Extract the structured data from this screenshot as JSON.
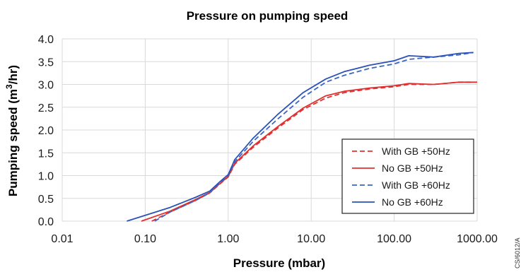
{
  "chart_data": {
    "type": "line",
    "title": "Pressure on pumping speed",
    "xlabel": "Pressure (mbar)",
    "ylabel_main": "Pumping speed (m",
    "ylabel_sup": "3",
    "ylabel_end": "/hr)",
    "xscale": "log",
    "xlim": [
      0.01,
      1000
    ],
    "ylim": [
      0,
      4.0
    ],
    "xticks": [
      0.01,
      0.1,
      1,
      10,
      100,
      1000
    ],
    "xtick_labels": [
      "0.01",
      "0.10",
      "1.00",
      "10.00",
      "100.00",
      "1000.00"
    ],
    "yticks": [
      0,
      0.5,
      1.0,
      1.5,
      2.0,
      2.5,
      3.0,
      3.5,
      4.0
    ],
    "ytick_labels": [
      "0.0",
      "0.5",
      "1.0",
      "1.5",
      "2.0",
      "2.5",
      "3.0",
      "3.5",
      "4.0"
    ],
    "grid": true,
    "legend_position": "right",
    "series": [
      {
        "name": "With GB +50Hz",
        "color": "#e03030",
        "dash": true,
        "x": [
          0.12,
          0.2,
          0.4,
          0.6,
          0.8,
          1.0,
          1.2,
          2,
          4,
          8,
          15,
          25,
          50,
          100,
          150,
          300,
          600,
          900
        ],
        "y": [
          0.0,
          0.2,
          0.45,
          0.62,
          0.82,
          0.97,
          1.25,
          1.62,
          2.05,
          2.45,
          2.7,
          2.82,
          2.9,
          2.95,
          3.0,
          3.0,
          3.05,
          3.05
        ]
      },
      {
        "name": "No GB +50Hz",
        "color": "#e03030",
        "dash": false,
        "x": [
          0.09,
          0.2,
          0.4,
          0.6,
          0.8,
          1.0,
          1.2,
          2,
          4,
          8,
          15,
          25,
          50,
          100,
          150,
          300,
          600,
          1000
        ],
        "y": [
          0.0,
          0.22,
          0.47,
          0.63,
          0.83,
          0.98,
          1.27,
          1.65,
          2.08,
          2.48,
          2.75,
          2.85,
          2.92,
          2.97,
          3.02,
          3.0,
          3.05,
          3.05
        ]
      },
      {
        "name": "With GB +60Hz",
        "color": "#3a66c6",
        "dash": true,
        "x": [
          0.13,
          0.2,
          0.4,
          0.6,
          0.8,
          1.0,
          1.2,
          2,
          4,
          8,
          15,
          25,
          50,
          100,
          150,
          300,
          600,
          900
        ],
        "y": [
          0.0,
          0.2,
          0.45,
          0.62,
          0.85,
          1.0,
          1.3,
          1.75,
          2.25,
          2.72,
          3.05,
          3.2,
          3.35,
          3.45,
          3.55,
          3.6,
          3.65,
          3.7
        ]
      },
      {
        "name": "No GB +60Hz",
        "color": "#2a52b8",
        "dash": false,
        "x": [
          0.06,
          0.2,
          0.4,
          0.6,
          0.8,
          1.0,
          1.2,
          2,
          4,
          8,
          15,
          25,
          50,
          100,
          150,
          300,
          600,
          900
        ],
        "y": [
          0.0,
          0.3,
          0.52,
          0.66,
          0.87,
          1.02,
          1.35,
          1.82,
          2.35,
          2.82,
          3.12,
          3.28,
          3.42,
          3.52,
          3.63,
          3.6,
          3.68,
          3.7
        ]
      }
    ]
  },
  "figure_code": "CS/6012/A"
}
